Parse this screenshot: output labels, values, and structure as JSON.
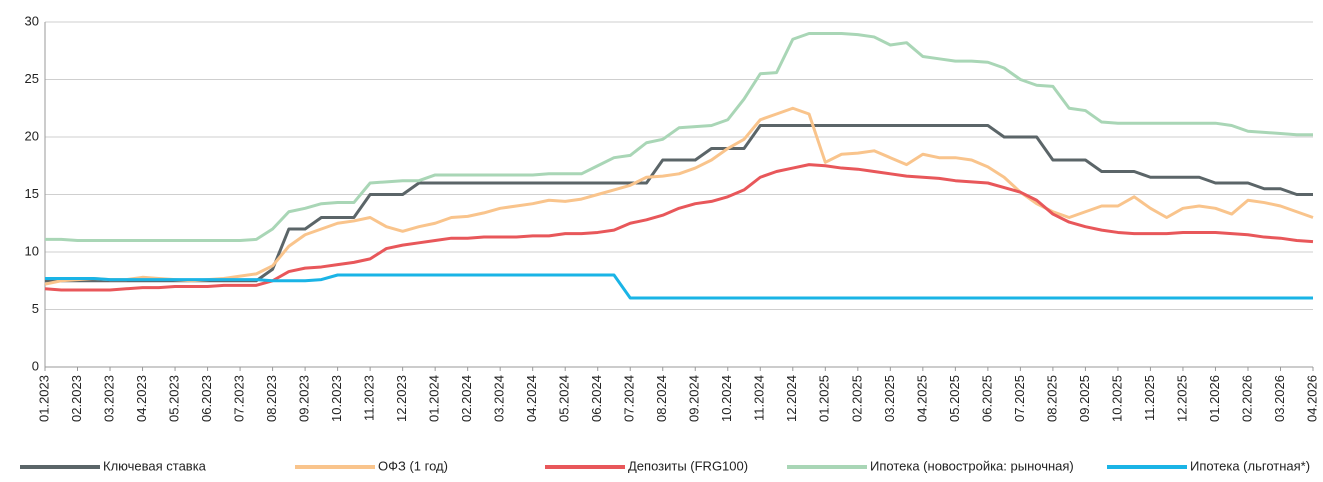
{
  "chart_data": {
    "type": "line",
    "categories": [
      "01.2023",
      null,
      "02.2023",
      null,
      "03.2023",
      null,
      "04.2023",
      null,
      "05.2023",
      null,
      "06.2023",
      null,
      "07.2023",
      null,
      "08.2023",
      null,
      "09.2023",
      null,
      "10.2023",
      null,
      "11.2023",
      null,
      "12.2023",
      null,
      "01.2024",
      null,
      "02.2024",
      null,
      "03.2024",
      null,
      "04.2024",
      null,
      "05.2024",
      null,
      "06.2024",
      null,
      "07.2024",
      null,
      "08.2024",
      null,
      "09.2024",
      null,
      "10.2024",
      null,
      "11.2024",
      null,
      "12.2024",
      null,
      "01.2025",
      null,
      "02.2025",
      null,
      "03.2025",
      null,
      "04.2025",
      null,
      "05.2025",
      null,
      "06.2025",
      null,
      "07.2025",
      null,
      "08.2025",
      null,
      "09.2025",
      null,
      "10.2025",
      null,
      "11.2025",
      null,
      "12.2025",
      null,
      "01.2026",
      null,
      "02.2026",
      null,
      "03.2026",
      null,
      "04.2026"
    ],
    "series": [
      {
        "name": "Ключевая ставка",
        "color": "#5b6568",
        "values": [
          7.5,
          7.5,
          7.5,
          7.5,
          7.5,
          7.5,
          7.5,
          7.5,
          7.5,
          7.5,
          7.5,
          7.5,
          7.5,
          7.5,
          8.5,
          12,
          12,
          13,
          13,
          13,
          15,
          15,
          15,
          16,
          16,
          16,
          16,
          16,
          16,
          16,
          16,
          16,
          16,
          16,
          16,
          16,
          16,
          16,
          18,
          18,
          18,
          19,
          19,
          19,
          21,
          21,
          21,
          21,
          21,
          21,
          21,
          21,
          21,
          21,
          21,
          21,
          21,
          21,
          21,
          20,
          20,
          20,
          18,
          18,
          18,
          17,
          17,
          17,
          16.5,
          16.5,
          16.5,
          16.5,
          16,
          16,
          16,
          15.5,
          15.5,
          15,
          15
        ]
      },
      {
        "name": "ОФЗ (1 год)",
        "color": "#f9c48c",
        "values": [
          7.2,
          7.5,
          7.6,
          7.7,
          7.6,
          7.6,
          7.8,
          7.7,
          7.6,
          7.5,
          7.6,
          7.7,
          7.9,
          8.1,
          8.8,
          10.5,
          11.5,
          12.0,
          12.5,
          12.7,
          13.0,
          12.2,
          11.8,
          12.2,
          12.5,
          13.0,
          13.1,
          13.4,
          13.8,
          14.0,
          14.2,
          14.5,
          14.4,
          14.6,
          15.0,
          15.4,
          15.8,
          16.5,
          16.6,
          16.8,
          17.3,
          18.0,
          19.0,
          19.8,
          21.5,
          22.0,
          22.5,
          22.0,
          17.8,
          18.5,
          18.6,
          18.8,
          18.2,
          17.6,
          18.5,
          18.2,
          18.2,
          18.0,
          17.4,
          16.5,
          15.2,
          14.2,
          13.5,
          13.0,
          13.5,
          14.0,
          14.0,
          14.8,
          13.8,
          13.0,
          13.8,
          14.0,
          13.8,
          13.3,
          14.5,
          14.3,
          14.0,
          13.5,
          13.0
        ]
      },
      {
        "name": "Депозиты (FRG100)",
        "color": "#e8575a",
        "values": [
          6.8,
          6.7,
          6.7,
          6.7,
          6.7,
          6.8,
          6.9,
          6.9,
          7.0,
          7.0,
          7.0,
          7.1,
          7.1,
          7.1,
          7.5,
          8.3,
          8.6,
          8.7,
          8.9,
          9.1,
          9.4,
          10.3,
          10.6,
          10.8,
          11.0,
          11.2,
          11.2,
          11.3,
          11.3,
          11.3,
          11.4,
          11.4,
          11.6,
          11.6,
          11.7,
          11.9,
          12.5,
          12.8,
          13.2,
          13.8,
          14.2,
          14.4,
          14.8,
          15.4,
          16.5,
          17.0,
          17.3,
          17.6,
          17.5,
          17.3,
          17.2,
          17.0,
          16.8,
          16.6,
          16.5,
          16.4,
          16.2,
          16.1,
          16.0,
          15.6,
          15.2,
          14.5,
          13.3,
          12.6,
          12.2,
          11.9,
          11.7,
          11.6,
          11.6,
          11.6,
          11.7,
          11.7,
          11.7,
          11.6,
          11.5,
          11.3,
          11.2,
          11.0,
          10.9
        ]
      },
      {
        "name": "Ипотека (новостройка: рыночная)",
        "color": "#a9d6b6",
        "values": [
          11.1,
          11.1,
          11.0,
          11.0,
          11.0,
          11.0,
          11.0,
          11.0,
          11.0,
          11.0,
          11.0,
          11.0,
          11.0,
          11.1,
          12.0,
          13.5,
          13.8,
          14.2,
          14.3,
          14.3,
          16.0,
          16.1,
          16.2,
          16.2,
          16.7,
          16.7,
          16.7,
          16.7,
          16.7,
          16.7,
          16.7,
          16.8,
          16.8,
          16.8,
          17.5,
          18.2,
          18.4,
          19.5,
          19.8,
          20.8,
          20.9,
          21.0,
          21.5,
          23.3,
          25.5,
          25.6,
          28.5,
          29.0,
          29.0,
          29.0,
          28.9,
          28.7,
          28.0,
          28.2,
          27.0,
          26.8,
          26.6,
          26.6,
          26.5,
          26.0,
          25.0,
          24.5,
          24.4,
          22.5,
          22.3,
          21.3,
          21.2,
          21.2,
          21.2,
          21.2,
          21.2,
          21.2,
          21.2,
          21.0,
          20.5,
          20.4,
          20.3,
          20.2,
          20.2
        ]
      },
      {
        "name": "Ипотека (льготная*)",
        "color": "#1ab4e6",
        "values": [
          7.7,
          7.7,
          7.7,
          7.7,
          7.6,
          7.6,
          7.6,
          7.6,
          7.6,
          7.6,
          7.6,
          7.6,
          7.6,
          7.6,
          7.5,
          7.5,
          7.5,
          7.6,
          8.0,
          8.0,
          8.0,
          8.0,
          8.0,
          8.0,
          8.0,
          8.0,
          8.0,
          8.0,
          8.0,
          8.0,
          8.0,
          8.0,
          8.0,
          8.0,
          8.0,
          8.0,
          6.0,
          6.0,
          6.0,
          6.0,
          6.0,
          6.0,
          6.0,
          6.0,
          6.0,
          6.0,
          6.0,
          6.0,
          6.0,
          6.0,
          6.0,
          6.0,
          6.0,
          6.0,
          6.0,
          6.0,
          6.0,
          6.0,
          6.0,
          6.0,
          6.0,
          6.0,
          6.0,
          6.0,
          6.0,
          6.0,
          6.0,
          6.0,
          6.0,
          6.0,
          6.0,
          6.0,
          6.0,
          6.0,
          6.0,
          6.0,
          6.0,
          6.0,
          6.0
        ]
      }
    ],
    "ylim": [
      0,
      30
    ],
    "yticks": [
      0,
      5,
      10,
      15,
      20,
      25,
      30
    ],
    "grid": true,
    "legend": "bottom"
  }
}
